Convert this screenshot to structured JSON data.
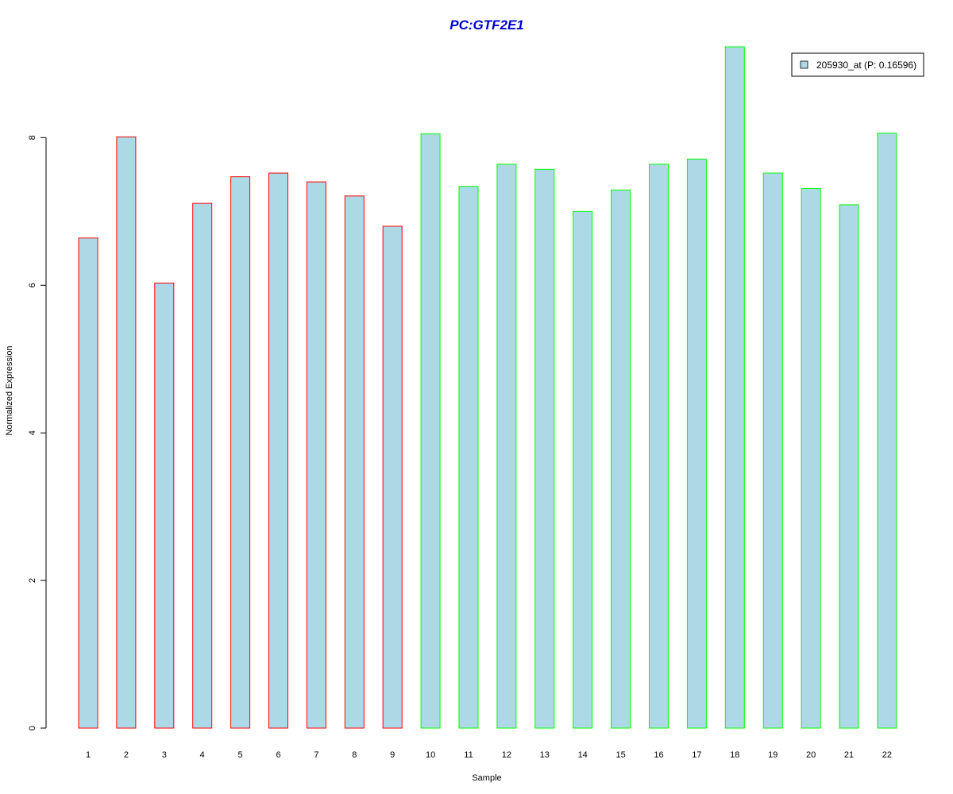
{
  "chart_data": {
    "type": "bar",
    "title": "PC:GTF2E1",
    "xlabel": "Sample",
    "ylabel": "Normalized Expression",
    "categories": [
      "1",
      "2",
      "3",
      "4",
      "5",
      "6",
      "7",
      "8",
      "9",
      "10",
      "11",
      "12",
      "13",
      "14",
      "15",
      "16",
      "17",
      "18",
      "19",
      "20",
      "21",
      "22"
    ],
    "series": [
      {
        "name": "205930_at (P: 0.16596)",
        "values": [
          6.64,
          8.01,
          6.03,
          7.11,
          7.47,
          7.52,
          7.4,
          7.21,
          6.8,
          8.05,
          7.34,
          7.64,
          7.57,
          7.0,
          7.29,
          7.64,
          7.71,
          9.23,
          7.52,
          7.31,
          7.09,
          8.06
        ]
      }
    ],
    "groups": [
      "red",
      "red",
      "red",
      "red",
      "red",
      "red",
      "red",
      "red",
      "red",
      "green",
      "green",
      "green",
      "green",
      "green",
      "green",
      "green",
      "green",
      "green",
      "green",
      "green",
      "green",
      "green"
    ],
    "ylim": [
      0,
      9.3
    ],
    "yticks": [
      0,
      2,
      4,
      6,
      8
    ],
    "grid": false,
    "legend_position": "top-right",
    "colors": {
      "bar_fill": "#ADD8E6",
      "red": "#FF0000",
      "green": "#00FF00",
      "title": "#0000CD",
      "axis": "#000000"
    }
  }
}
